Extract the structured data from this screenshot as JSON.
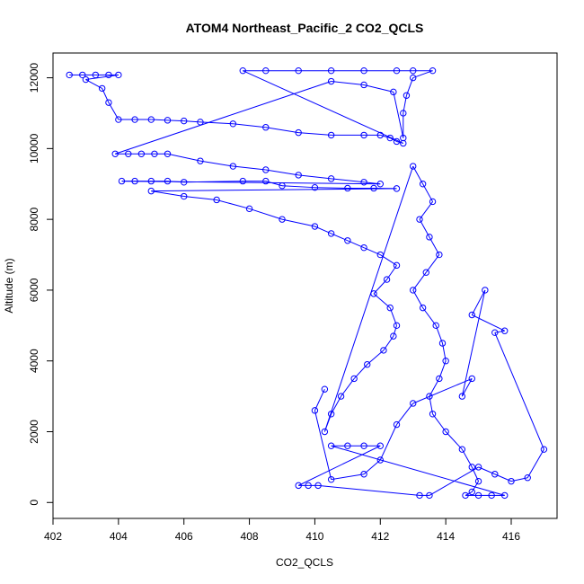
{
  "chart_data": {
    "type": "scatter",
    "title": "ATOM4 Northeast_Pacific_2 CO2_QCLS",
    "xlabel": "CO2_QCLS",
    "ylabel": "Altitude (m)",
    "xlim": [
      402,
      417.4
    ],
    "ylim": [
      -450,
      12700
    ],
    "x_ticks": [
      402,
      404,
      406,
      408,
      410,
      412,
      414,
      416
    ],
    "y_ticks": [
      0,
      2000,
      4000,
      6000,
      8000,
      10000,
      12000
    ],
    "grid": false,
    "legend": "none",
    "series": [
      {
        "marker": "open-circle",
        "line": true,
        "color": "#0000ff",
        "points": [
          [
            402.5,
            12080
          ],
          [
            402.9,
            12080
          ],
          [
            403.3,
            12080
          ],
          [
            403.7,
            12080
          ],
          [
            404.0,
            12080
          ],
          [
            403.0,
            11950
          ],
          [
            403.5,
            11700
          ],
          [
            403.7,
            11300
          ],
          [
            404.0,
            10820
          ],
          [
            404.5,
            10820
          ],
          [
            405.0,
            10820
          ],
          [
            405.5,
            10800
          ],
          [
            406.0,
            10780
          ],
          [
            406.5,
            10750
          ],
          [
            407.5,
            10700
          ],
          [
            408.5,
            10600
          ],
          [
            409.5,
            10450
          ],
          [
            410.5,
            10380
          ],
          [
            411.5,
            10380
          ],
          [
            412.0,
            10380
          ],
          [
            412.3,
            10300
          ],
          [
            412.5,
            10200
          ],
          [
            412.7,
            10150
          ],
          [
            407.8,
            12200
          ],
          [
            408.5,
            12200
          ],
          [
            409.5,
            12200
          ],
          [
            410.5,
            12200
          ],
          [
            411.5,
            12200
          ],
          [
            412.5,
            12200
          ],
          [
            413.0,
            12200
          ],
          [
            413.6,
            12200
          ],
          [
            413.0,
            12000
          ],
          [
            412.8,
            11500
          ],
          [
            412.7,
            11000
          ],
          [
            412.7,
            10300
          ],
          [
            412.4,
            11600
          ],
          [
            411.5,
            11800
          ],
          [
            410.5,
            11900
          ],
          [
            403.9,
            9850
          ],
          [
            404.3,
            9850
          ],
          [
            404.7,
            9850
          ],
          [
            405.1,
            9850
          ],
          [
            405.5,
            9850
          ],
          [
            406.5,
            9650
          ],
          [
            407.5,
            9500
          ],
          [
            408.5,
            9400
          ],
          [
            409.5,
            9250
          ],
          [
            410.5,
            9150
          ],
          [
            411.5,
            9050
          ],
          [
            412.0,
            9000
          ],
          [
            404.1,
            9080
          ],
          [
            404.5,
            9080
          ],
          [
            405.0,
            9080
          ],
          [
            405.5,
            9080
          ],
          [
            406.0,
            9050
          ],
          [
            407.8,
            9080
          ],
          [
            408.5,
            9080
          ],
          [
            409.0,
            8950
          ],
          [
            410.0,
            8900
          ],
          [
            411.0,
            8880
          ],
          [
            411.8,
            8880
          ],
          [
            412.5,
            8870
          ],
          [
            405.0,
            8800
          ],
          [
            406.0,
            8650
          ],
          [
            407.0,
            8550
          ],
          [
            408.0,
            8300
          ],
          [
            409.0,
            8000
          ],
          [
            410.0,
            7800
          ],
          [
            410.5,
            7600
          ],
          [
            411.0,
            7400
          ],
          [
            411.5,
            7200
          ],
          [
            412.0,
            7000
          ],
          [
            412.5,
            6700
          ],
          [
            412.2,
            6300
          ],
          [
            411.8,
            5900
          ],
          [
            412.3,
            5500
          ],
          [
            412.5,
            5000
          ],
          [
            412.4,
            4700
          ],
          [
            412.1,
            4300
          ],
          [
            411.6,
            3900
          ],
          [
            411.2,
            3500
          ],
          [
            410.8,
            3000
          ],
          [
            410.5,
            2500
          ],
          [
            410.3,
            2000
          ],
          [
            413.0,
            9500
          ],
          [
            413.3,
            9000
          ],
          [
            413.6,
            8500
          ],
          [
            413.2,
            8000
          ],
          [
            413.5,
            7500
          ],
          [
            413.8,
            7000
          ],
          [
            413.4,
            6500
          ],
          [
            413.0,
            6000
          ],
          [
            413.3,
            5500
          ],
          [
            413.7,
            5000
          ],
          [
            413.9,
            4500
          ],
          [
            414.0,
            4000
          ],
          [
            413.8,
            3500
          ],
          [
            413.5,
            3000
          ],
          [
            413.6,
            2500
          ],
          [
            414.0,
            2000
          ],
          [
            414.5,
            1500
          ],
          [
            414.8,
            1000
          ],
          [
            415.0,
            600
          ],
          [
            414.8,
            300
          ],
          [
            414.6,
            200
          ],
          [
            415.0,
            200
          ],
          [
            415.4,
            200
          ],
          [
            415.8,
            200
          ],
          [
            410.5,
            1600
          ],
          [
            411.0,
            1600
          ],
          [
            411.5,
            1600
          ],
          [
            412.0,
            1600
          ],
          [
            409.5,
            480
          ],
          [
            409.8,
            480
          ],
          [
            410.1,
            480
          ],
          [
            413.2,
            200
          ],
          [
            413.5,
            200
          ],
          [
            415.0,
            1000
          ],
          [
            415.5,
            800
          ],
          [
            416.0,
            600
          ],
          [
            416.5,
            700
          ],
          [
            417.0,
            1500
          ],
          [
            415.5,
            4800
          ],
          [
            415.8,
            4850
          ],
          [
            414.8,
            5300
          ],
          [
            415.2,
            6000
          ],
          [
            414.5,
            3000
          ],
          [
            414.8,
            3500
          ],
          [
            413.0,
            2800
          ],
          [
            412.5,
            2200
          ],
          [
            412.0,
            1200
          ],
          [
            411.5,
            800
          ],
          [
            410.5,
            650
          ],
          [
            410.0,
            2600
          ],
          [
            410.3,
            3200
          ]
        ]
      }
    ]
  }
}
